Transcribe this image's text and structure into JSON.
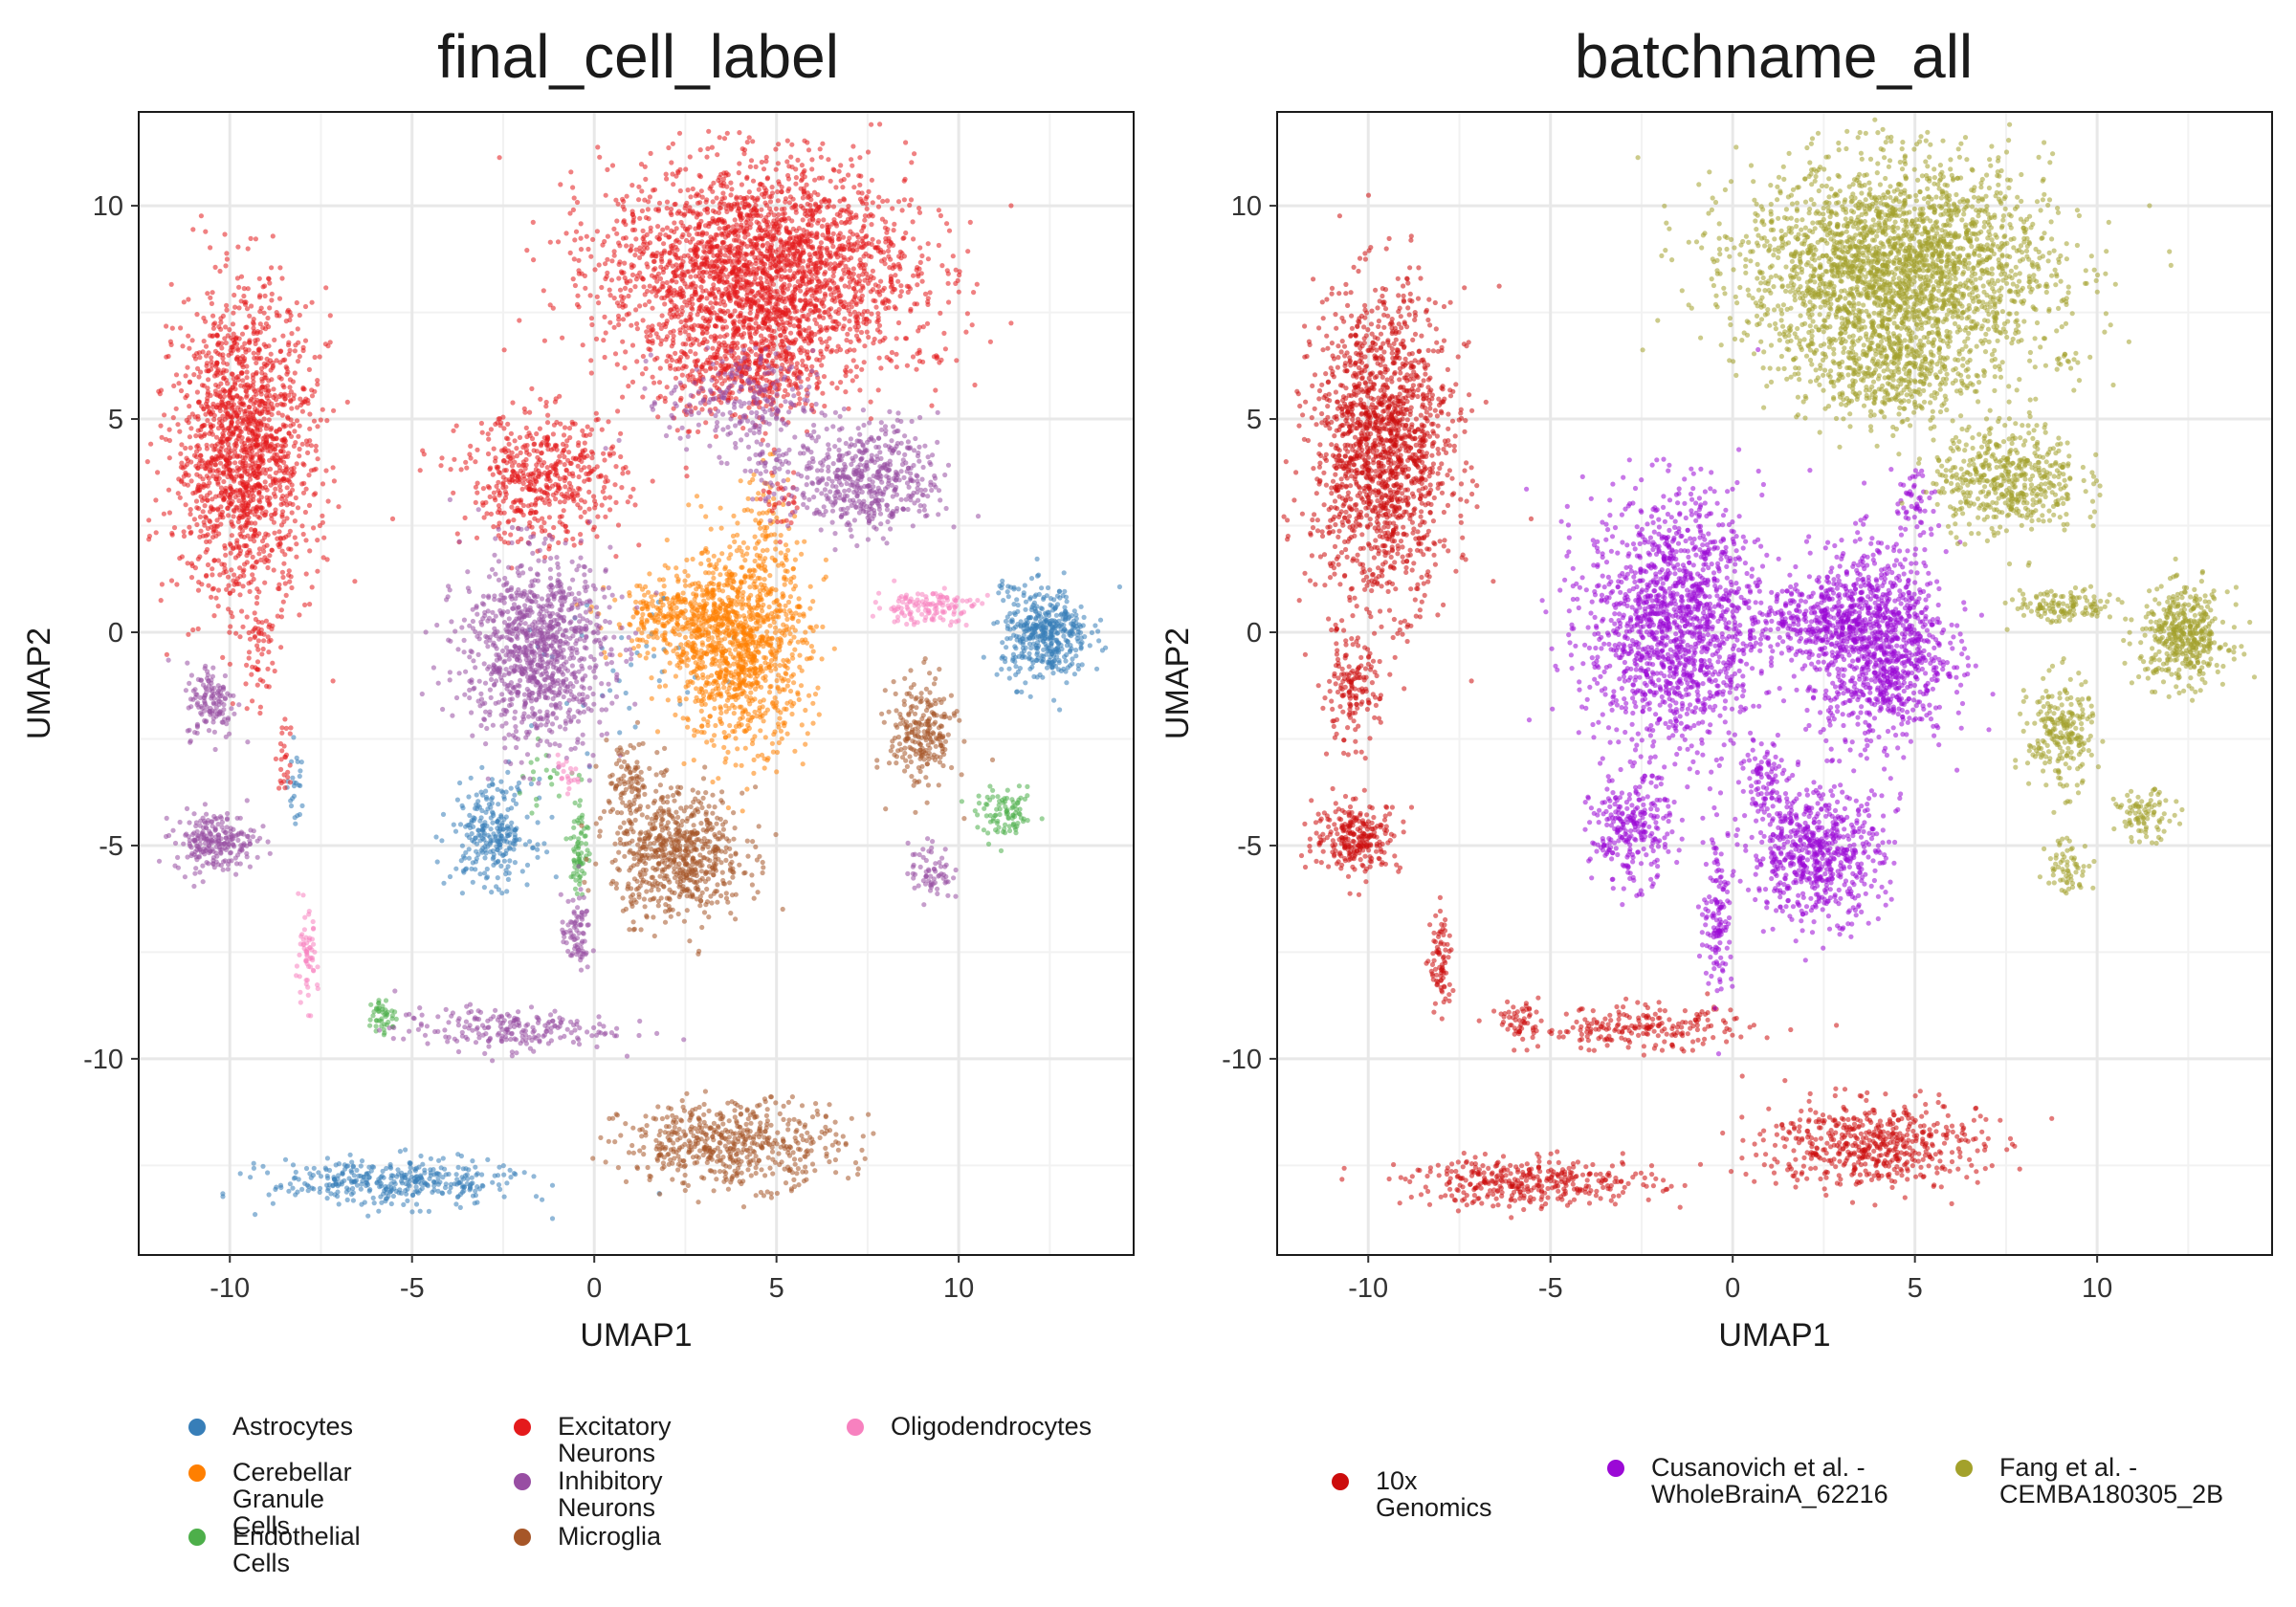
{
  "chart_data": [
    {
      "type": "scatter",
      "title": "final_cell_label",
      "xlabel": "UMAP1",
      "ylabel": "UMAP2",
      "xlim": [
        -12.5,
        14.8
      ],
      "ylim": [
        -14.6,
        12.2
      ],
      "xticks": [
        -10,
        -5,
        0,
        5,
        10
      ],
      "yticks": [
        -10,
        -5,
        0,
        5,
        10
      ],
      "xtick_labels": [
        "-10",
        "-5",
        "0",
        "5",
        "10"
      ],
      "ytick_labels": [
        "-10",
        "-5",
        "0",
        "5",
        "10"
      ],
      "grid": true,
      "legend_position": "bottom",
      "series": [
        {
          "name": "Astrocytes",
          "color": "#377eb8",
          "clusters": [
            {
              "cx": 12.4,
              "cy": -0.1,
              "sx": 0.6,
              "sy": 0.55,
              "n": 420
            },
            {
              "cx": -2.8,
              "cy": -4.7,
              "sx": 0.55,
              "sy": 0.6,
              "n": 260
            },
            {
              "cx": -5.5,
              "cy": -12.9,
              "sx": 1.7,
              "sy": 0.28,
              "n": 360
            },
            {
              "cx": -8.2,
              "cy": -3.7,
              "sx": 0.1,
              "sy": 0.5,
              "n": 24
            },
            {
              "cx": 11.3,
              "cy": 1.0,
              "sx": 0.2,
              "sy": 0.2,
              "n": 10
            },
            {
              "cx": 1.0,
              "cy": -1.2,
              "sx": 1.3,
              "sy": 0.9,
              "n": 40
            }
          ]
        },
        {
          "name": "Cerebellar Granule\nCells",
          "color": "#ff7f00",
          "clusters": [
            {
              "cx": 4.0,
              "cy": -0.3,
              "sx": 0.95,
              "sy": 1.15,
              "n": 1100
            },
            {
              "cx": 2.2,
              "cy": 0.3,
              "sx": 0.9,
              "sy": 0.45,
              "n": 260
            },
            {
              "cx": 4.8,
              "cy": 2.5,
              "sx": 0.35,
              "sy": 0.7,
              "n": 70
            }
          ]
        },
        {
          "name": "Endothelial Cells",
          "color": "#4daf4a",
          "clusters": [
            {
              "cx": -0.4,
              "cy": -5.0,
              "sx": 0.12,
              "sy": 0.6,
              "n": 70
            },
            {
              "cx": -5.8,
              "cy": -9.0,
              "sx": 0.2,
              "sy": 0.22,
              "n": 45
            },
            {
              "cx": 11.3,
              "cy": -4.3,
              "sx": 0.4,
              "sy": 0.28,
              "n": 90
            },
            {
              "cx": -1.3,
              "cy": -3.4,
              "sx": 0.5,
              "sy": 0.35,
              "n": 20
            }
          ]
        },
        {
          "name": "Excitatory Neurons",
          "color": "#e41a1c",
          "clusters": [
            {
              "cx": 4.5,
              "cy": 8.5,
              "sx": 2.1,
              "sy": 1.25,
              "n": 2600
            },
            {
              "cx": 4.2,
              "cy": 6.0,
              "sx": 1.2,
              "sy": 0.55,
              "n": 350
            },
            {
              "cx": -9.6,
              "cy": 4.3,
              "sx": 0.95,
              "sy": 1.8,
              "n": 1600
            },
            {
              "cx": -1.4,
              "cy": 3.6,
              "sx": 1.1,
              "sy": 0.75,
              "n": 520
            },
            {
              "cx": -9.2,
              "cy": -0.5,
              "sx": 0.2,
              "sy": 0.7,
              "n": 40
            },
            {
              "cx": -8.5,
              "cy": -3.0,
              "sx": 0.12,
              "sy": 0.45,
              "n": 25
            },
            {
              "cx": 9.2,
              "cy": 6.4,
              "sx": 0.3,
              "sy": 0.1,
              "n": 14
            },
            {
              "cx": 5.2,
              "cy": 3.0,
              "sx": 0.3,
              "sy": 0.3,
              "n": 30
            }
          ]
        },
        {
          "name": "Inhibitory Neurons",
          "color": "#984ea3",
          "clusters": [
            {
              "cx": -1.6,
              "cy": -0.4,
              "sx": 1.0,
              "sy": 1.1,
              "n": 1000
            },
            {
              "cx": 7.5,
              "cy": 3.6,
              "sx": 1.0,
              "sy": 0.65,
              "n": 500
            },
            {
              "cx": 4.0,
              "cy": 5.4,
              "sx": 1.0,
              "sy": 0.6,
              "n": 220
            },
            {
              "cx": -10.5,
              "cy": -1.6,
              "sx": 0.35,
              "sy": 0.45,
              "n": 130
            },
            {
              "cx": -10.4,
              "cy": -4.9,
              "sx": 0.55,
              "sy": 0.35,
              "n": 230
            },
            {
              "cx": -2.5,
              "cy": -9.3,
              "sx": 1.5,
              "sy": 0.25,
              "n": 210
            },
            {
              "cx": -0.5,
              "cy": -7.1,
              "sx": 0.2,
              "sy": 0.45,
              "n": 80
            },
            {
              "cx": 9.2,
              "cy": -5.6,
              "sx": 0.3,
              "sy": 0.35,
              "n": 65
            },
            {
              "cx": 4.8,
              "cy": 4.0,
              "sx": 0.3,
              "sy": 0.45,
              "n": 40
            }
          ]
        },
        {
          "name": "Microglia",
          "color": "#a65628",
          "clusters": [
            {
              "cx": 2.3,
              "cy": -5.2,
              "sx": 0.9,
              "sy": 0.75,
              "n": 650
            },
            {
              "cx": 0.9,
              "cy": -3.5,
              "sx": 0.35,
              "sy": 0.5,
              "n": 90
            },
            {
              "cx": 9.0,
              "cy": -2.4,
              "sx": 0.45,
              "sy": 0.65,
              "n": 230
            },
            {
              "cx": 3.8,
              "cy": -12.0,
              "sx": 1.5,
              "sy": 0.5,
              "n": 540
            }
          ]
        },
        {
          "name": "Oligodendrocytes",
          "color": "#f781bf",
          "clusters": [
            {
              "cx": 9.1,
              "cy": 0.6,
              "sx": 0.7,
              "sy": 0.2,
              "n": 130
            },
            {
              "cx": -7.9,
              "cy": -7.7,
              "sx": 0.15,
              "sy": 0.55,
              "n": 60
            },
            {
              "cx": -0.8,
              "cy": -3.4,
              "sx": 0.2,
              "sy": 0.2,
              "n": 20
            }
          ]
        }
      ]
    },
    {
      "type": "scatter",
      "title": "batchname_all",
      "xlabel": "UMAP1",
      "ylabel": "UMAP2",
      "xlim": [
        -12.5,
        14.8
      ],
      "ylim": [
        -14.6,
        12.2
      ],
      "xticks": [
        -10,
        -5,
        0,
        5,
        10
      ],
      "yticks": [
        -10,
        -5,
        0,
        5,
        10
      ],
      "xtick_labels": [
        "-10",
        "-5",
        "0",
        "5",
        "10"
      ],
      "ytick_labels": [
        "-10",
        "-5",
        "0",
        "5",
        "10"
      ],
      "grid": true,
      "legend_position": "bottom",
      "series": [
        {
          "name": "10x Genomics",
          "color": "#cc0c0c",
          "clusters": [
            {
              "cx": -9.6,
              "cy": 4.3,
              "sx": 0.95,
              "sy": 1.8,
              "n": 1600
            },
            {
              "cx": -10.5,
              "cy": -1.4,
              "sx": 0.4,
              "sy": 0.6,
              "n": 150
            },
            {
              "cx": -10.3,
              "cy": -4.8,
              "sx": 0.6,
              "sy": 0.4,
              "n": 260
            },
            {
              "cx": -8.0,
              "cy": -7.8,
              "sx": 0.15,
              "sy": 0.6,
              "n": 80
            },
            {
              "cx": -5.8,
              "cy": -9.1,
              "sx": 0.25,
              "sy": 0.25,
              "n": 50
            },
            {
              "cx": -2.5,
              "cy": -9.3,
              "sx": 1.5,
              "sy": 0.25,
              "n": 210
            },
            {
              "cx": -5.5,
              "cy": -12.9,
              "sx": 1.7,
              "sy": 0.28,
              "n": 360
            },
            {
              "cx": 3.8,
              "cy": -12.0,
              "sx": 1.5,
              "sy": 0.5,
              "n": 540
            }
          ]
        },
        {
          "name": "Cusanovich et al. -\nWholeBrainA_62216",
          "color": "#9b09d6",
          "clusters": [
            {
              "cx": -1.6,
              "cy": 0.2,
              "sx": 1.2,
              "sy": 1.5,
              "n": 1500
            },
            {
              "cx": 4.0,
              "cy": -0.3,
              "sx": 0.95,
              "sy": 1.15,
              "n": 1100
            },
            {
              "cx": 2.2,
              "cy": 0.3,
              "sx": 0.9,
              "sy": 0.45,
              "n": 260
            },
            {
              "cx": -2.8,
              "cy": -4.7,
              "sx": 0.55,
              "sy": 0.6,
              "n": 260
            },
            {
              "cx": 2.3,
              "cy": -5.2,
              "sx": 0.9,
              "sy": 0.75,
              "n": 650
            },
            {
              "cx": 0.9,
              "cy": -3.5,
              "sx": 0.35,
              "sy": 0.5,
              "n": 90
            },
            {
              "cx": -0.4,
              "cy": -6.5,
              "sx": 0.2,
              "sy": 1.0,
              "n": 140
            },
            {
              "cx": 5.0,
              "cy": 3.0,
              "sx": 0.3,
              "sy": 0.5,
              "n": 50
            }
          ]
        },
        {
          "name": "Fang et al. -\nCEMBA180305_2B",
          "color": "#a3a12b",
          "clusters": [
            {
              "cx": 4.5,
              "cy": 8.5,
              "sx": 2.1,
              "sy": 1.25,
              "n": 2600
            },
            {
              "cx": 4.2,
              "cy": 6.0,
              "sx": 1.2,
              "sy": 0.55,
              "n": 350
            },
            {
              "cx": 7.5,
              "cy": 3.6,
              "sx": 1.0,
              "sy": 0.65,
              "n": 500
            },
            {
              "cx": 12.4,
              "cy": -0.1,
              "sx": 0.6,
              "sy": 0.55,
              "n": 420
            },
            {
              "cx": 9.1,
              "cy": 0.6,
              "sx": 0.7,
              "sy": 0.2,
              "n": 130
            },
            {
              "cx": 9.0,
              "cy": -2.4,
              "sx": 0.45,
              "sy": 0.65,
              "n": 230
            },
            {
              "cx": 11.3,
              "cy": -4.3,
              "sx": 0.4,
              "sy": 0.28,
              "n": 90
            },
            {
              "cx": 9.2,
              "cy": -5.5,
              "sx": 0.3,
              "sy": 0.35,
              "n": 65
            },
            {
              "cx": 9.3,
              "cy": 6.4,
              "sx": 0.3,
              "sy": 0.1,
              "n": 14
            }
          ]
        }
      ]
    }
  ]
}
